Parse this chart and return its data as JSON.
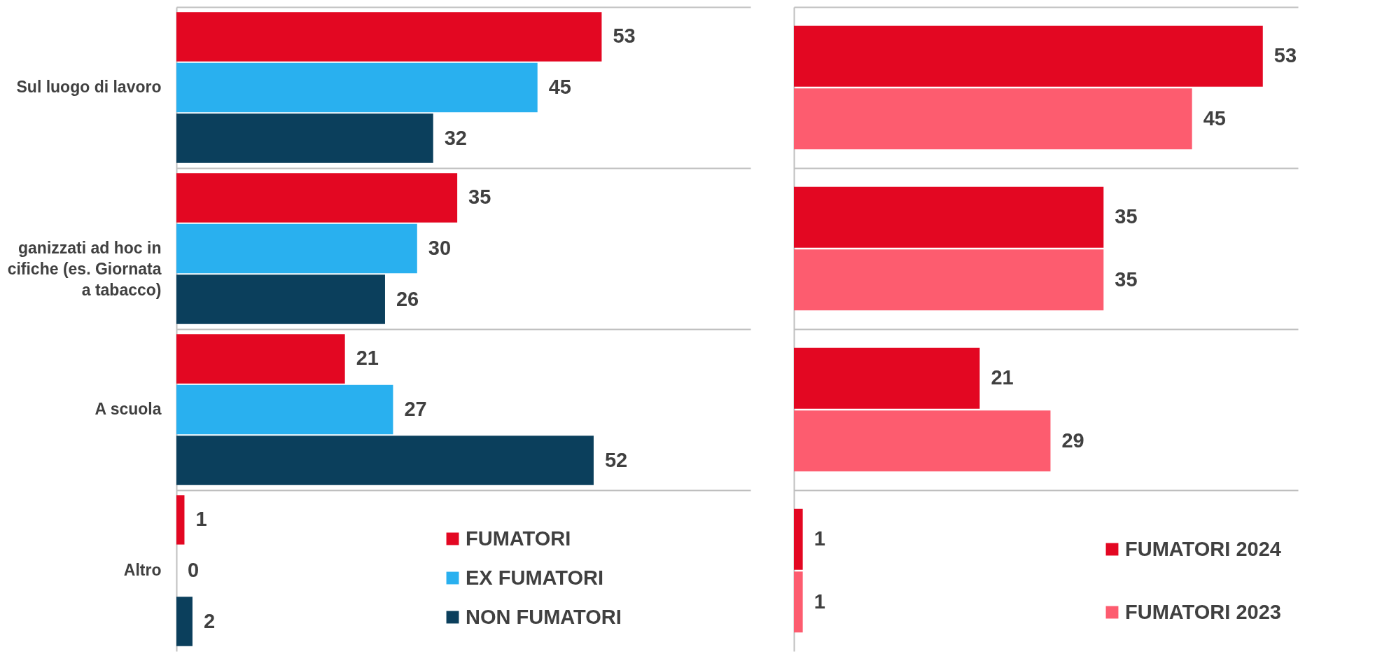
{
  "chart_data": [
    {
      "type": "bar",
      "orientation": "horizontal",
      "categories": [
        "Sul luogo di lavoro",
        "ganizzati ad hoc in\ncifiche (es. Giornata\na tabacco)",
        "A scuola",
        "Altro"
      ],
      "series": [
        {
          "name": "FUMATORI",
          "color": "#e30722",
          "values": [
            53,
            35,
            21,
            1
          ]
        },
        {
          "name": "EX FUMATORI",
          "color": "#29b0ef",
          "values": [
            45,
            30,
            27,
            0
          ]
        },
        {
          "name": "NON FUMATORI",
          "color": "#0b3f5c",
          "values": [
            32,
            26,
            52,
            2
          ]
        }
      ],
      "data_labels": true,
      "grid": "y",
      "legend": "bottom right",
      "tick_labels": "y"
    },
    {
      "type": "bar",
      "orientation": "horizontal",
      "categories": [
        null,
        null,
        null,
        null
      ],
      "series": [
        {
          "name": "FUMATORI 2024",
          "color": "#e30722",
          "values": [
            53,
            35,
            21,
            1
          ]
        },
        {
          "name": "FUMATORI 2023",
          "color": "#fd5c6f",
          "values": [
            45,
            35,
            29,
            1
          ]
        }
      ],
      "data_labels": true,
      "grid": "y",
      "legend": "bottom right"
    }
  ]
}
